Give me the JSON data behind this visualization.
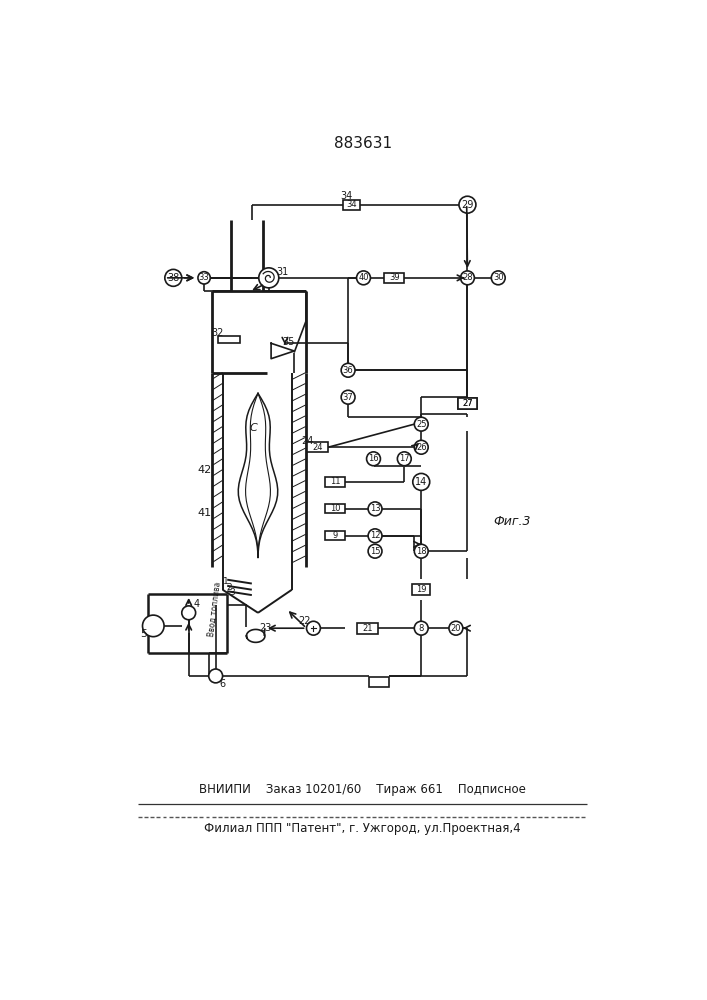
{
  "title": "883631",
  "fig3_label": "Фиг.3",
  "bottom_text1": "ВНИИПИ    Заказ 10201/60    Тираж 661    Подписное",
  "bottom_text2": "Филиал ППП \"Патент\", г. Ужгород, ул.Проектная,4",
  "bg_color": "#ffffff",
  "line_color": "#1a1a1a",
  "lw": 1.2
}
